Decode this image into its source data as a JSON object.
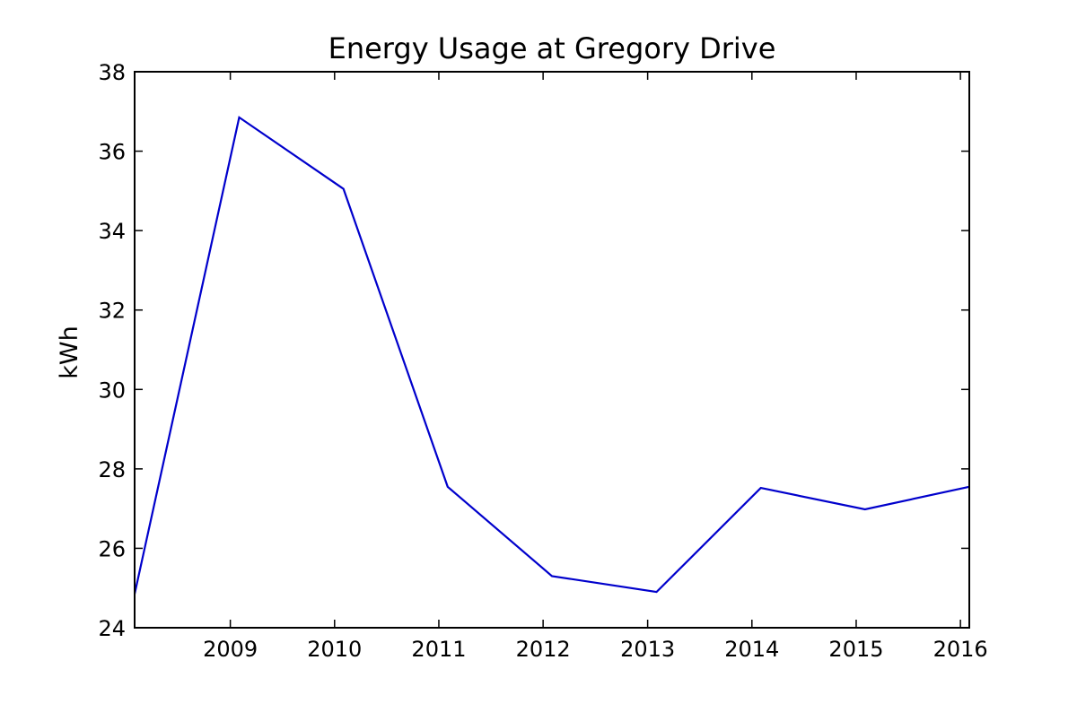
{
  "chart_data": {
    "type": "line",
    "title": "Energy Usage at Gregory Drive",
    "xlabel": "",
    "ylabel": "kWh",
    "x": [
      "2008-02-01",
      "2009-02-01",
      "2010-02-01",
      "2011-02-01",
      "2012-02-01",
      "2013-02-01",
      "2014-02-01",
      "2015-02-01",
      "2016-02-01"
    ],
    "xlim": [
      "2008-02-01",
      "2016-02-01"
    ],
    "x_ticks": [
      "2009",
      "2010",
      "2011",
      "2012",
      "2013",
      "2014",
      "2015",
      "2016"
    ],
    "ylim": [
      24,
      38
    ],
    "y_ticks": [
      "24",
      "26",
      "28",
      "30",
      "32",
      "34",
      "36",
      "38"
    ],
    "grid": false,
    "series": [
      {
        "values": [
          24.85,
          36.85,
          35.05,
          27.55,
          25.3,
          24.9,
          27.52,
          26.98,
          27.55
        ],
        "color": "#0000cc"
      }
    ]
  }
}
